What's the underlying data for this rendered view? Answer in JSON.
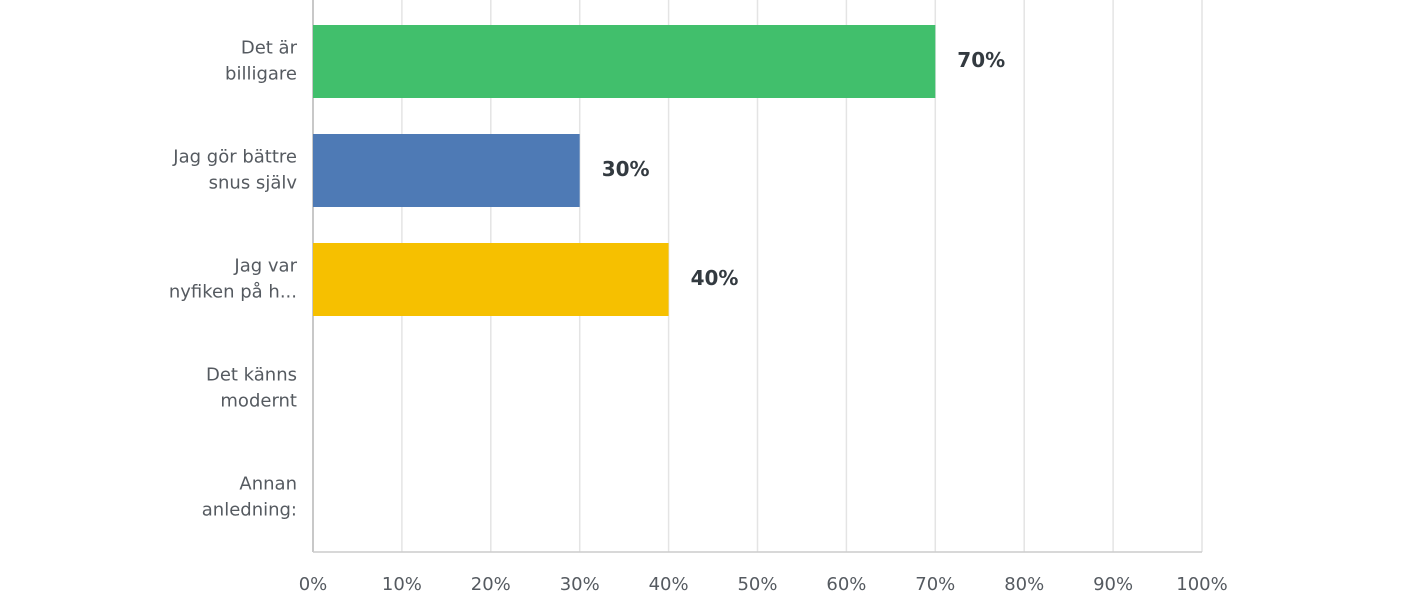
{
  "chart_data": {
    "type": "hbar",
    "categories": [
      [
        "Det är",
        "billigare"
      ],
      [
        "Jag gör bättre",
        "snus själv"
      ],
      [
        "Jag var",
        "nyfiken på h..."
      ],
      [
        "Det känns",
        "modernt"
      ],
      [
        "Annan",
        "anledning:"
      ]
    ],
    "values": [
      70,
      30,
      40,
      0,
      0
    ],
    "value_labels": [
      "70%",
      "30%",
      "40%",
      null,
      null
    ],
    "colors": [
      "#41bf6c",
      "#4e7ab5",
      "#f6c000",
      null,
      null
    ],
    "xlim": [
      0,
      100
    ],
    "xticks": [
      {
        "value": 0,
        "label": "0%"
      },
      {
        "value": 10,
        "label": "10%"
      },
      {
        "value": 20,
        "label": "20%"
      },
      {
        "value": 30,
        "label": "30%"
      },
      {
        "value": 40,
        "label": "40%"
      },
      {
        "value": 50,
        "label": "50%"
      },
      {
        "value": 60,
        "label": "60%"
      },
      {
        "value": 70,
        "label": "70%"
      },
      {
        "value": 80,
        "label": "80%"
      },
      {
        "value": 90,
        "label": "90%"
      },
      {
        "value": 100,
        "label": "100%"
      }
    ],
    "grid": true
  }
}
